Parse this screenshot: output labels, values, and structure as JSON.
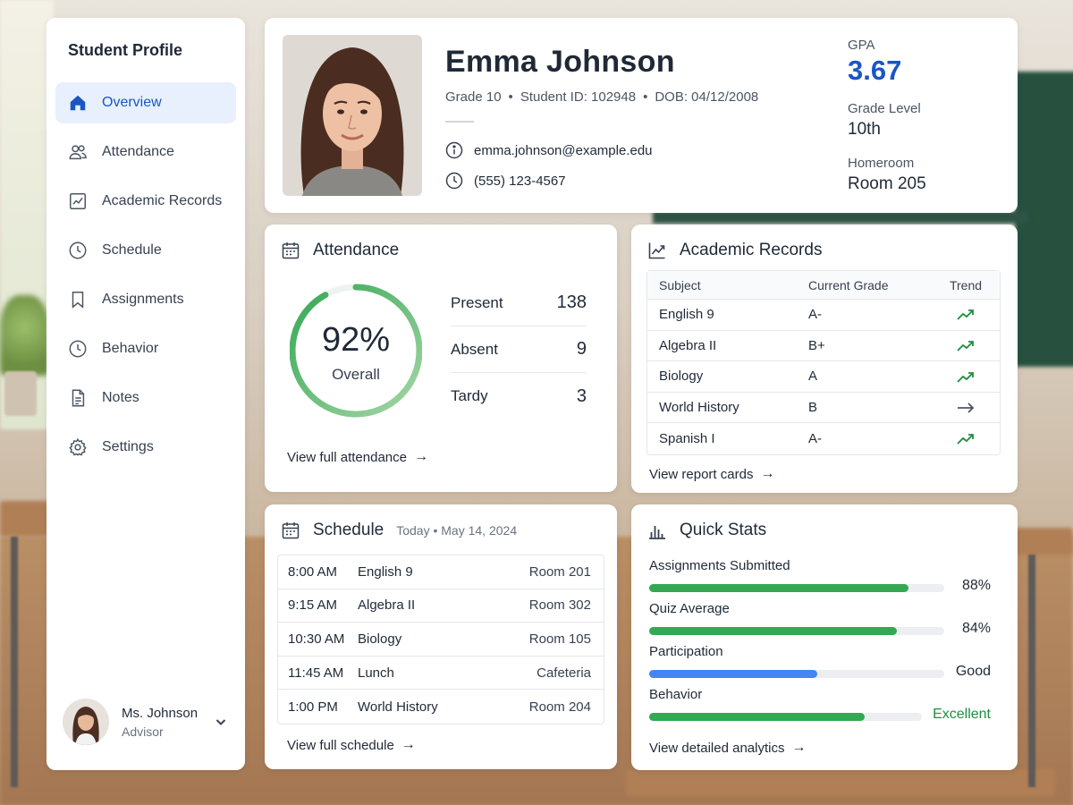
{
  "sidebar": {
    "title": "Student Profile",
    "items": [
      {
        "label": "Overview",
        "icon": "home-icon",
        "active": true
      },
      {
        "label": "Attendance",
        "icon": "users-icon"
      },
      {
        "label": "Academic Records",
        "icon": "chart-line-icon"
      },
      {
        "label": "Schedule",
        "icon": "clock-icon"
      },
      {
        "label": "Assignments",
        "icon": "bookmark-icon"
      },
      {
        "label": "Behavior",
        "icon": "clock-icon"
      },
      {
        "label": "Notes",
        "icon": "document-icon"
      },
      {
        "label": "Settings",
        "icon": "gear-icon"
      }
    ],
    "advisor": {
      "name": "Ms. Johnson",
      "role": "Advisor"
    }
  },
  "profile": {
    "name": "Emma Johnson",
    "grade": "Grade 10",
    "student_id": "Student ID: 102948",
    "dob": "DOB: 04/12/2008",
    "separator": "•",
    "email": "emma.johnson@example.edu",
    "phone": "(555) 123-4567",
    "gpa_label": "GPA",
    "gpa_value": "3.67",
    "grade_level_label": "Grade Level",
    "grade_level_value": "10th",
    "homeroom_label": "Homeroom",
    "homeroom_value": "Room 205"
  },
  "attendance": {
    "title": "Attendance",
    "overall_pct": "92%",
    "overall_fraction": 0.92,
    "overall_label": "Overall",
    "rows": [
      {
        "label": "Present",
        "value": "138"
      },
      {
        "label": "Absent",
        "value": "9"
      },
      {
        "label": "Tardy",
        "value": "3"
      }
    ],
    "link": "View full attendance",
    "arrow": "→"
  },
  "academic": {
    "title": "Academic Records",
    "columns": [
      "Subject",
      "Current Grade",
      "Trend"
    ],
    "rows": [
      {
        "subject": "English 9",
        "grade": "A-",
        "trend": "up"
      },
      {
        "subject": "Algebra II",
        "grade": "B+",
        "trend": "up"
      },
      {
        "subject": "Biology",
        "grade": "A",
        "trend": "up"
      },
      {
        "subject": "World History",
        "grade": "B",
        "trend": "flat"
      },
      {
        "subject": "Spanish I",
        "grade": "A-",
        "trend": "up"
      }
    ],
    "link": "View report cards",
    "arrow": "→"
  },
  "schedule": {
    "title": "Schedule",
    "subtitle": "Today • May 14, 2024",
    "rows": [
      {
        "time": "8:00 AM",
        "subject": "English 9",
        "room": "Room 201"
      },
      {
        "time": "9:15 AM",
        "subject": "Algebra II",
        "room": "Room 302"
      },
      {
        "time": "10:30 AM",
        "subject": "Biology",
        "room": "Room 105"
      },
      {
        "time": "11:45 AM",
        "subject": "Lunch",
        "room": "Cafeteria"
      },
      {
        "time": "1:00 PM",
        "subject": "World History",
        "room": "Room 204"
      }
    ],
    "link": "View full schedule",
    "arrow": "→"
  },
  "quick_stats": {
    "title": "Quick Stats",
    "items": [
      {
        "label": "Assignments Submitted",
        "value": "88%",
        "fraction": 0.88,
        "color": "#34a853"
      },
      {
        "label": "Quiz Average",
        "value": "84%",
        "fraction": 0.84,
        "color": "#34a853"
      },
      {
        "label": "Participation",
        "value": "Good",
        "fraction": 0.57,
        "color": "#4285f4"
      },
      {
        "label": "Behavior",
        "value": "Excellent",
        "fraction": 0.79,
        "color": "#34a853",
        "value_color": "#1e8e3e"
      }
    ],
    "link": "View detailed analytics",
    "arrow": "→"
  },
  "colors": {
    "accent_blue": "#1a56c4",
    "active_bg": "#e8f0fe",
    "green": "#34a853",
    "trend_green": "#1e8e3e",
    "trend_gray": "#4b5563"
  }
}
